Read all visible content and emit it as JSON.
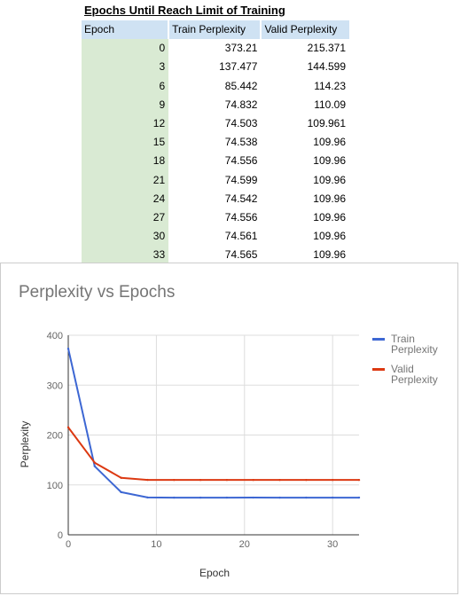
{
  "table": {
    "title": "Epochs Until Reach Limit of Training",
    "headers": [
      "Epoch",
      "Train Perplexity",
      "Valid Perplexity"
    ],
    "rows": [
      [
        "0",
        "373.21",
        "215.371"
      ],
      [
        "3",
        "137.477",
        "144.599"
      ],
      [
        "6",
        "85.442",
        "114.23"
      ],
      [
        "9",
        "74.832",
        "110.09"
      ],
      [
        "12",
        "74.503",
        "109.961"
      ],
      [
        "15",
        "74.538",
        "109.96"
      ],
      [
        "18",
        "74.556",
        "109.96"
      ],
      [
        "21",
        "74.599",
        "109.96"
      ],
      [
        "24",
        "74.542",
        "109.96"
      ],
      [
        "27",
        "74.556",
        "109.96"
      ],
      [
        "30",
        "74.561",
        "109.96"
      ],
      [
        "33",
        "74.565",
        "109.96"
      ]
    ]
  },
  "chart_data": {
    "type": "line",
    "title": "Perplexity vs Epochs",
    "xlabel": "Epoch",
    "ylabel": "Perplexity",
    "x": [
      0,
      3,
      6,
      9,
      12,
      15,
      18,
      21,
      24,
      27,
      30,
      33
    ],
    "xlim": [
      0,
      33
    ],
    "ylim": [
      0,
      400
    ],
    "xticks": [
      0,
      10,
      20,
      30
    ],
    "yticks": [
      0,
      100,
      200,
      300,
      400
    ],
    "grid": true,
    "legend_position": "right",
    "series": [
      {
        "name": "Train Perplexity",
        "name_lines": [
          "Train",
          "Perplexity"
        ],
        "color": "#3d67d3",
        "values": [
          373.21,
          137.477,
          85.442,
          74.832,
          74.503,
          74.538,
          74.556,
          74.599,
          74.542,
          74.556,
          74.561,
          74.565
        ]
      },
      {
        "name": "Valid Perplexity",
        "name_lines": [
          "Valid",
          "Perplexity"
        ],
        "color": "#dc3912",
        "values": [
          215.371,
          144.599,
          114.23,
          110.09,
          109.961,
          109.96,
          109.96,
          109.96,
          109.96,
          109.96,
          109.96,
          109.96
        ]
      }
    ]
  }
}
